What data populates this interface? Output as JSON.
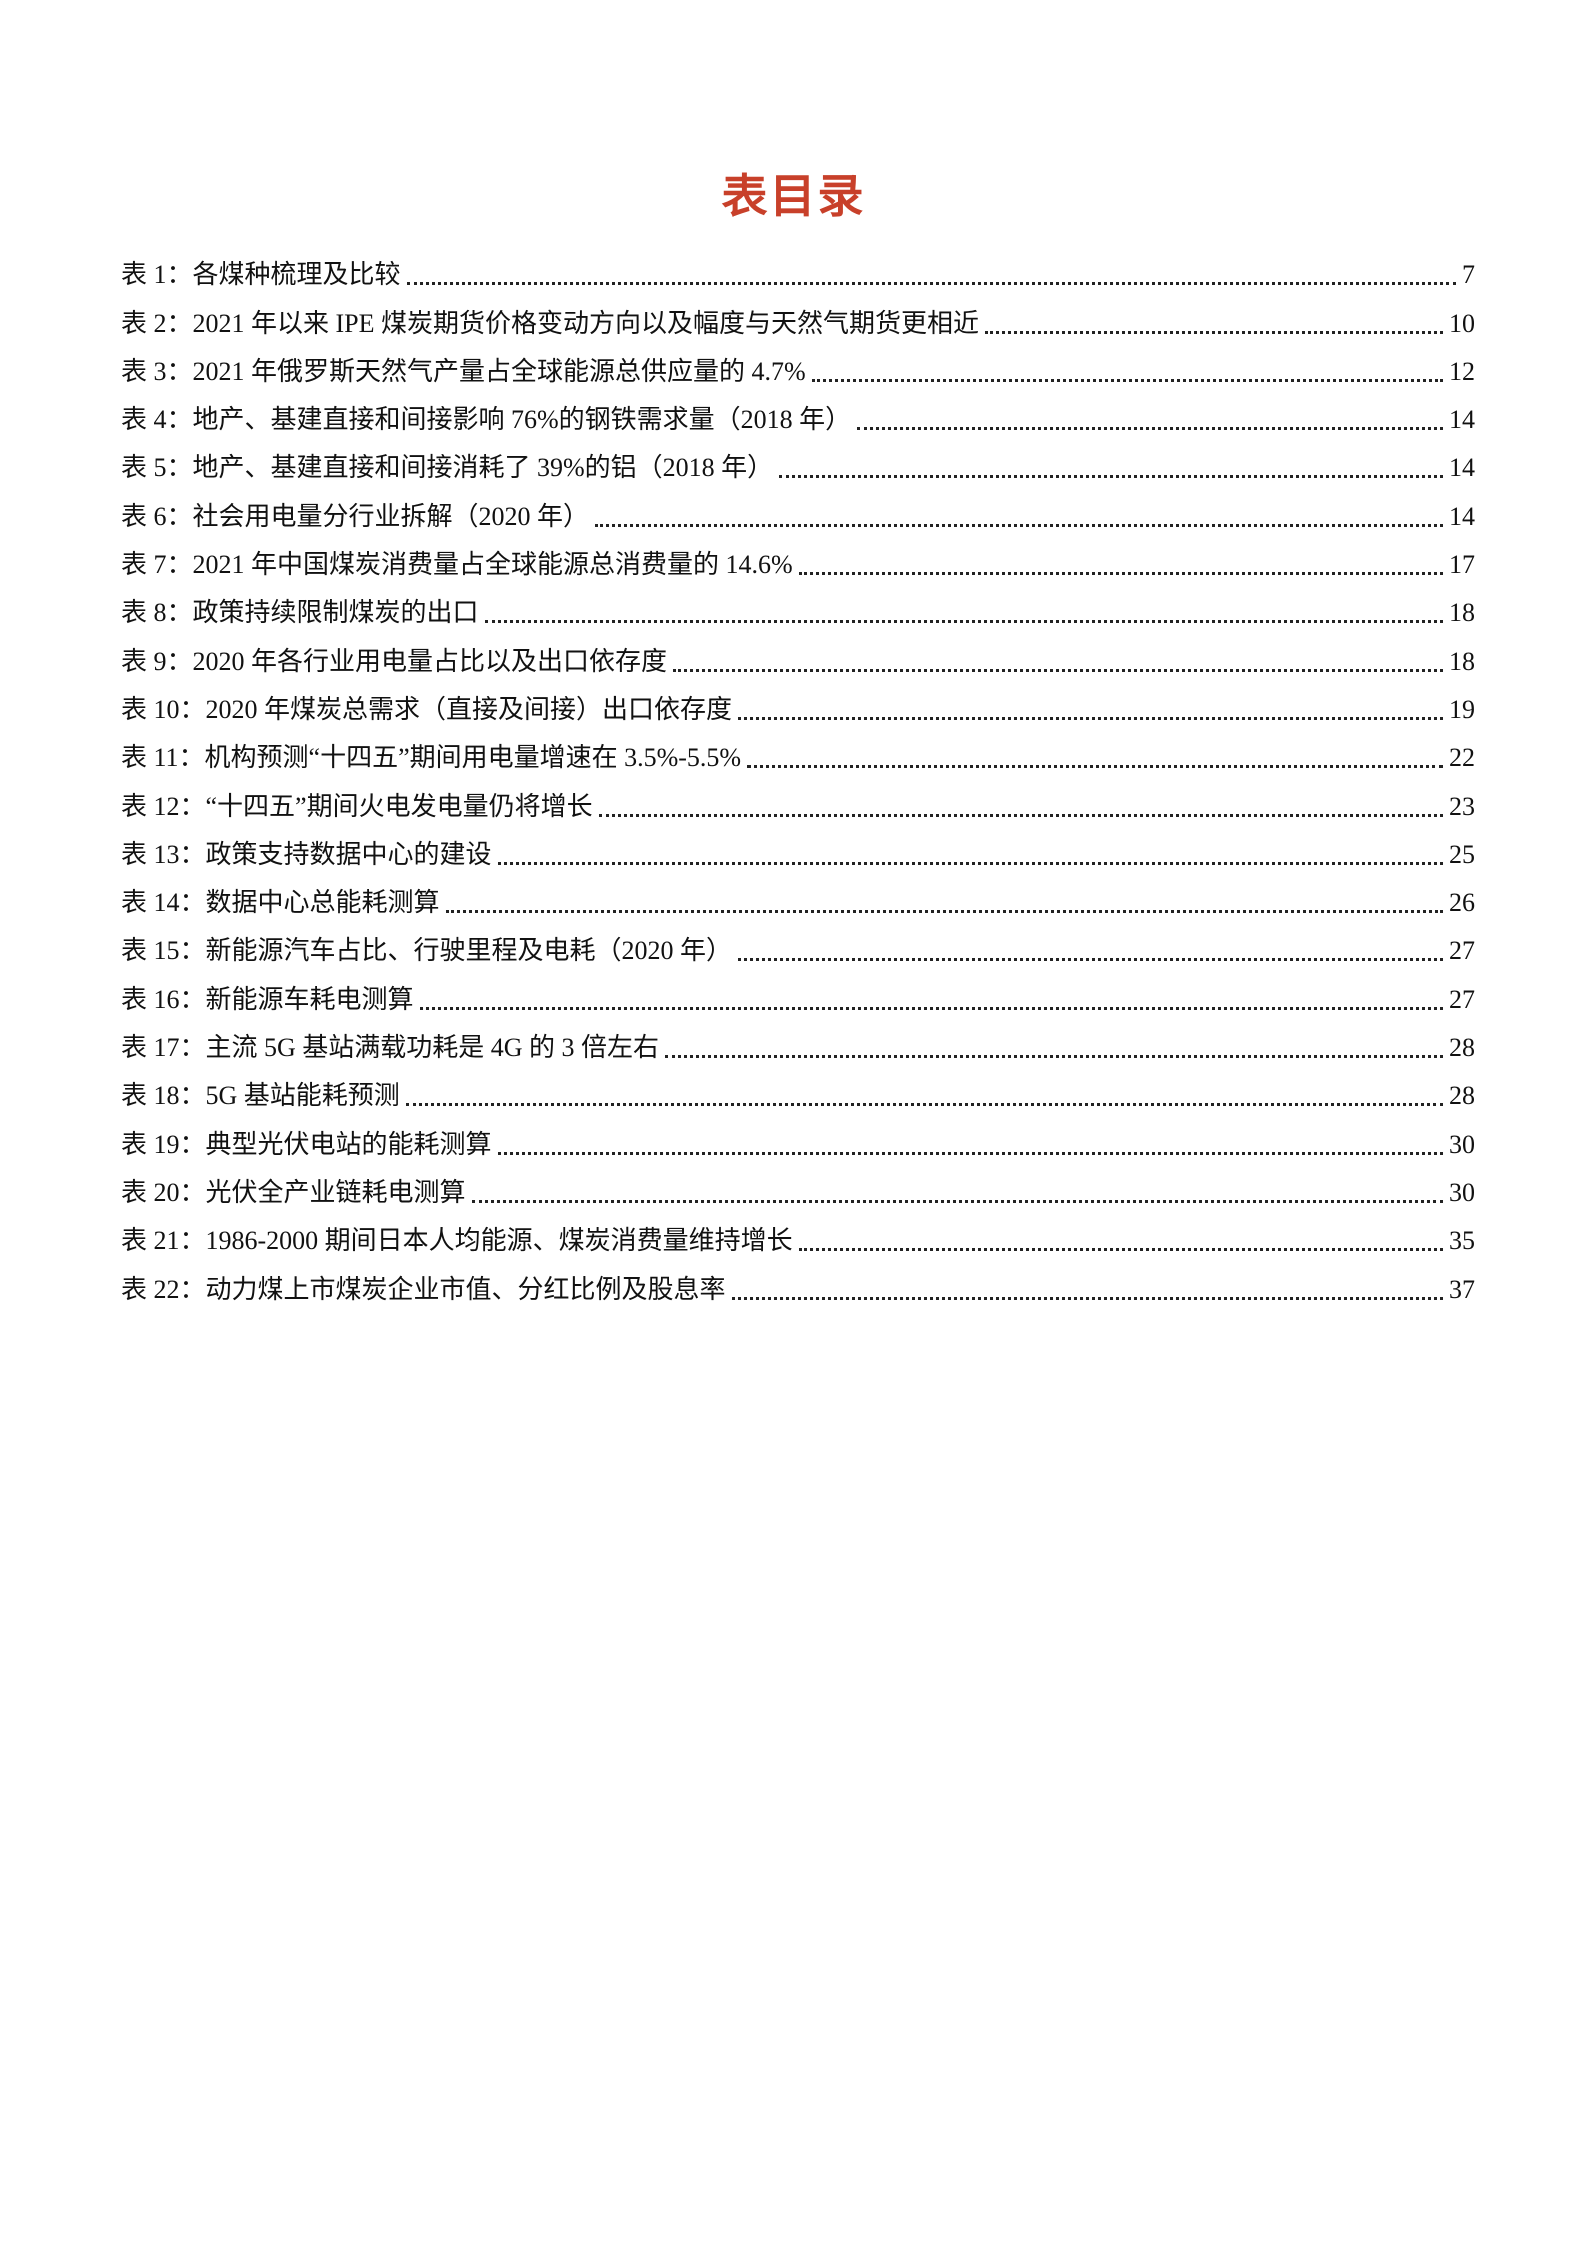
{
  "title": "表目录",
  "entries": [
    {
      "label": "表 1：各煤种梳理及比较",
      "page": "7"
    },
    {
      "label": "表 2：2021 年以来 IPE 煤炭期货价格变动方向以及幅度与天然气期货更相近",
      "page": "10"
    },
    {
      "label": "表 3：2021 年俄罗斯天然气产量占全球能源总供应量的 4.7%",
      "page": "12"
    },
    {
      "label": "表 4：地产、基建直接和间接影响 76%的钢铁需求量（2018 年）",
      "page": "14"
    },
    {
      "label": "表 5：地产、基建直接和间接消耗了 39%的铝（2018 年）",
      "page": "14"
    },
    {
      "label": "表 6：社会用电量分行业拆解（2020 年）",
      "page": "14"
    },
    {
      "label": "表 7：2021 年中国煤炭消费量占全球能源总消费量的 14.6%",
      "page": "17"
    },
    {
      "label": "表 8：政策持续限制煤炭的出口",
      "page": "18"
    },
    {
      "label": "表 9：2020 年各行业用电量占比以及出口依存度",
      "page": "18"
    },
    {
      "label": "表 10：2020 年煤炭总需求（直接及间接）出口依存度",
      "page": "19"
    },
    {
      "label": "表 11：机构预测“十四五”期间用电量增速在 3.5%-5.5%",
      "page": "22"
    },
    {
      "label": "表 12：“十四五”期间火电发电量仍将增长",
      "page": "23"
    },
    {
      "label": "表 13：政策支持数据中心的建设",
      "page": "25"
    },
    {
      "label": "表 14：数据中心总能耗测算",
      "page": "26"
    },
    {
      "label": "表 15：新能源汽车占比、行驶里程及电耗（2020 年）",
      "page": "27"
    },
    {
      "label": "表 16：新能源车耗电测算",
      "page": "27"
    },
    {
      "label": "表 17：主流 5G 基站满载功耗是 4G 的 3 倍左右",
      "page": "28"
    },
    {
      "label": "表 18：5G 基站能耗预测",
      "page": "28"
    },
    {
      "label": "表 19：典型光伏电站的能耗测算",
      "page": "30"
    },
    {
      "label": "表 20：光伏全产业链耗电测算",
      "page": "30"
    },
    {
      "label": "表 21：1986-2000 期间日本人均能源、煤炭消费量维持增长",
      "page": "35"
    },
    {
      "label": "表 22：动力煤上市煤炭企业市值、分红比例及股息率",
      "page": "37"
    }
  ],
  "colors": {
    "title": "#c8402a",
    "text": "#111111"
  }
}
